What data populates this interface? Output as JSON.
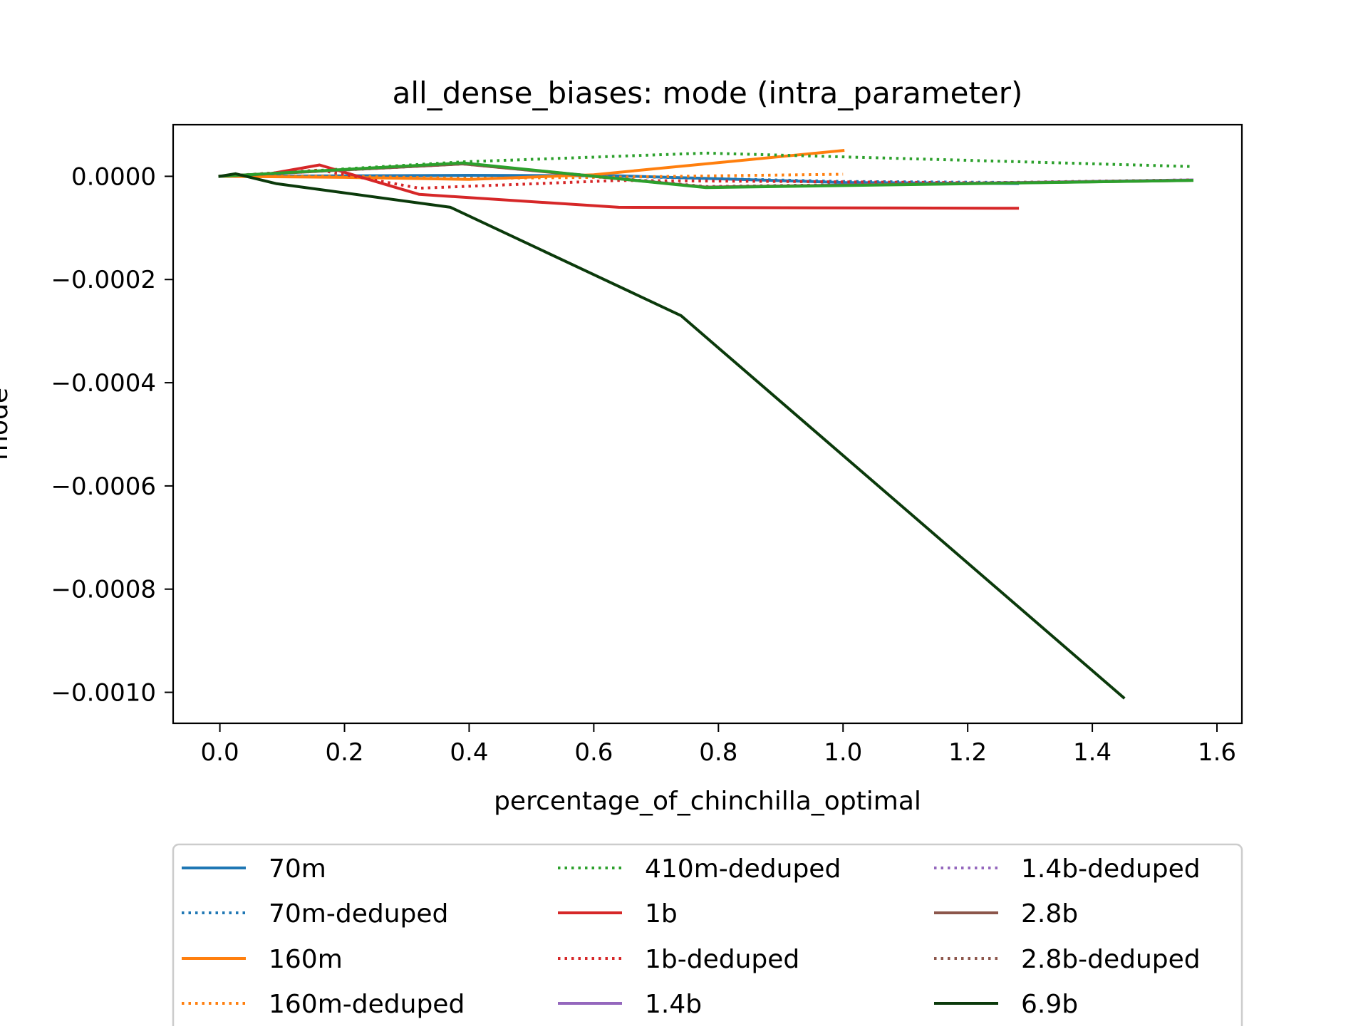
{
  "chart_data": {
    "type": "line",
    "title": "all_dense_biases: mode (intra_parameter)",
    "xlabel": "percentage_of_chinchilla_optimal",
    "ylabel": "mode",
    "xlim": [
      -0.075,
      1.64
    ],
    "ylim": [
      -0.00106,
      0.0001
    ],
    "xticks": [
      {
        "value": 0.0,
        "label": "0.0"
      },
      {
        "value": 0.2,
        "label": "0.2"
      },
      {
        "value": 0.4,
        "label": "0.4"
      },
      {
        "value": 0.6,
        "label": "0.6"
      },
      {
        "value": 0.8,
        "label": "0.8"
      },
      {
        "value": 1.0,
        "label": "1.0"
      },
      {
        "value": 1.2,
        "label": "1.2"
      },
      {
        "value": 1.4,
        "label": "1.4"
      },
      {
        "value": 1.6,
        "label": "1.6"
      }
    ],
    "yticks": [
      {
        "value": 0.0,
        "label": "0.0000"
      },
      {
        "value": -0.0002,
        "label": "−0.0002"
      },
      {
        "value": -0.0004,
        "label": "−0.0004"
      },
      {
        "value": -0.0006,
        "label": "−0.0006"
      },
      {
        "value": -0.0008,
        "label": "−0.0008"
      },
      {
        "value": -0.001,
        "label": "−0.0010"
      }
    ],
    "grid": false,
    "legend_position": "below",
    "series": [
      {
        "name": "70m",
        "color": "#1f77b4",
        "dash": "solid",
        "x": [
          0.0,
          0.4,
          0.64,
          1.0,
          1.28
        ],
        "y": [
          0.0,
          2e-06,
          1e-06,
          -1.2e-05,
          -1.4e-05
        ]
      },
      {
        "name": "70m-deduped",
        "color": "#1f77b4",
        "dash": "dotted",
        "x": [
          0.0,
          0.4,
          0.64,
          1.0,
          1.28
        ],
        "y": [
          0.0,
          1e-06,
          0.0,
          -1e-05,
          -1.2e-05
        ]
      },
      {
        "name": "160m",
        "color": "#ff7f0e",
        "dash": "solid",
        "x": [
          0.0,
          0.2,
          0.4,
          0.6,
          1.0
        ],
        "y": [
          0.0,
          -2e-06,
          -6e-06,
          3e-06,
          5e-05
        ]
      },
      {
        "name": "160m-deduped",
        "color": "#ff7f0e",
        "dash": "dotted",
        "x": [
          0.0,
          0.2,
          0.4,
          0.6,
          1.0
        ],
        "y": [
          0.0,
          0.0,
          -4e-06,
          -2e-06,
          4e-06
        ]
      },
      {
        "name": "410m-deduped",
        "color": "#2ca02c",
        "dash": "dotted",
        "x": [
          0.0,
          0.39,
          0.78,
          1.56
        ],
        "y": [
          0.0,
          2.8e-05,
          4.5e-05,
          1.9e-05
        ]
      },
      {
        "name": "1b",
        "color": "#d62728",
        "dash": "solid",
        "x": [
          0.0,
          0.08,
          0.16,
          0.32,
          0.64,
          1.28
        ],
        "y": [
          0.0,
          5e-06,
          2.2e-05,
          -3.5e-05,
          -6e-05,
          -6.2e-05
        ]
      },
      {
        "name": "1b-deduped",
        "color": "#d62728",
        "dash": "dotted",
        "x": [
          0.0,
          0.16,
          0.32,
          0.64,
          1.28
        ],
        "y": [
          0.0,
          1.2e-05,
          -2.3e-05,
          -8e-06,
          -1.3e-05
        ]
      },
      {
        "name": "1.4b",
        "color": "#9467bd",
        "dash": "solid",
        "x": [
          0.0,
          0.39,
          0.78,
          1.56
        ],
        "y": [
          0.0,
          2.5e-05,
          -2.1e-05,
          -7e-06
        ]
      },
      {
        "name": "1.4b-deduped",
        "color": "#9467bd",
        "dash": "dotted",
        "x": [
          0.0,
          0.39,
          0.78,
          1.56
        ],
        "y": [
          0.0,
          2.4e-05,
          -2e-05,
          -7e-06
        ]
      },
      {
        "name": "2.8b",
        "color": "#8c564b",
        "dash": "solid",
        "x": [
          0.0,
          0.39,
          0.78,
          1.56
        ],
        "y": [
          0.0,
          2.4e-05,
          -2.1e-05,
          -8e-06
        ]
      },
      {
        "name": "2.8b-deduped",
        "color": "#8c564b",
        "dash": "dotted",
        "x": [
          0.0,
          0.39,
          0.78,
          1.56
        ],
        "y": [
          0.0,
          2.4e-05,
          -2e-05,
          -7e-06
        ]
      },
      {
        "name": "410m",
        "color": "#2ca02c",
        "dash": "solid",
        "legend": false,
        "x": [
          0.0,
          0.39,
          0.78,
          1.56
        ],
        "y": [
          0.0,
          2.6e-05,
          -2.2e-05,
          -8e-06
        ]
      },
      {
        "name": "6.9b",
        "color": "#0b3a0b",
        "dash": "solid",
        "x": [
          0.0,
          0.025,
          0.09,
          0.37,
          0.74,
          1.45
        ],
        "y": [
          0.0,
          5e-06,
          -1.4e-05,
          -6e-05,
          -0.00027,
          -0.00101
        ]
      }
    ],
    "legend_columns": [
      [
        "70m",
        "70m-deduped",
        "160m",
        "160m-deduped"
      ],
      [
        "410m-deduped",
        "1b",
        "1b-deduped",
        "1.4b"
      ],
      [
        "1.4b-deduped",
        "2.8b",
        "2.8b-deduped",
        "6.9b"
      ]
    ]
  }
}
